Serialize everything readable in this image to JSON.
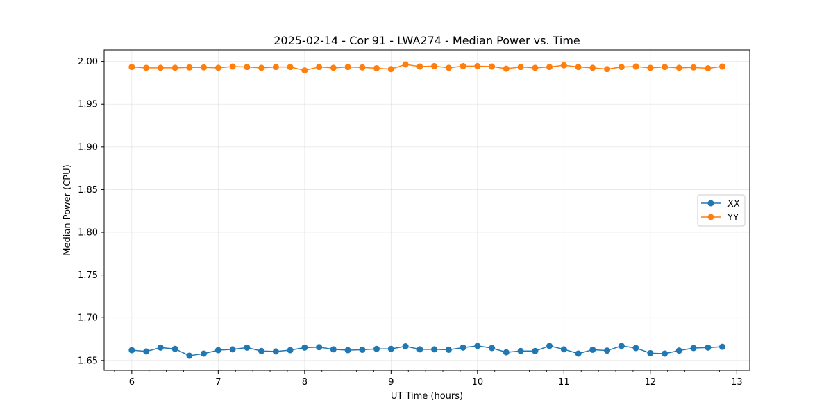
{
  "chart_data": {
    "type": "line",
    "title": "2025-02-14 - Cor 91 - LWA274 - Median Power vs. Time",
    "xlabel": "UT Time (hours)",
    "ylabel": "Median Power (CPU)",
    "xlim": [
      5.68,
      13.15
    ],
    "ylim": [
      1.6385,
      2.0135
    ],
    "xticks": [
      6,
      7,
      8,
      9,
      10,
      11,
      12,
      13
    ],
    "xtick_labels": [
      "6",
      "7",
      "8",
      "9",
      "10",
      "11",
      "12",
      "13"
    ],
    "yticks": [
      1.65,
      1.7,
      1.75,
      1.8,
      1.85,
      1.9,
      1.95,
      2.0
    ],
    "ytick_labels": [
      "1.65",
      "1.70",
      "1.75",
      "1.80",
      "1.85",
      "1.90",
      "1.95",
      "2.00"
    ],
    "x_minor_step": 0.2,
    "grid": true,
    "legend_position": "center-right",
    "x": [
      6.0,
      6.167,
      6.333,
      6.5,
      6.667,
      6.833,
      7.0,
      7.167,
      7.333,
      7.5,
      7.667,
      7.833,
      8.0,
      8.167,
      8.333,
      8.5,
      8.667,
      8.833,
      9.0,
      9.167,
      9.333,
      9.5,
      9.667,
      9.833,
      10.0,
      10.167,
      10.333,
      10.5,
      10.667,
      10.833,
      11.0,
      11.167,
      11.333,
      11.5,
      11.667,
      11.833,
      12.0,
      12.167,
      12.333,
      12.5,
      12.667,
      12.833
    ],
    "series": [
      {
        "name": "XX",
        "color": "#1f77b4",
        "values": [
          1.662,
          1.6605,
          1.665,
          1.6635,
          1.6555,
          1.658,
          1.662,
          1.663,
          1.665,
          1.661,
          1.6605,
          1.662,
          1.665,
          1.6655,
          1.663,
          1.662,
          1.6625,
          1.6635,
          1.6635,
          1.6665,
          1.663,
          1.663,
          1.6625,
          1.665,
          1.667,
          1.6645,
          1.6595,
          1.661,
          1.661,
          1.667,
          1.663,
          1.658,
          1.6625,
          1.6615,
          1.667,
          1.6645,
          1.6585,
          1.658,
          1.6615,
          1.6645,
          1.665,
          1.666
        ]
      },
      {
        "name": "YY",
        "color": "#ff7f0e",
        "values": [
          1.9935,
          1.9925,
          1.9925,
          1.9925,
          1.993,
          1.993,
          1.9925,
          1.994,
          1.9935,
          1.9925,
          1.9935,
          1.9935,
          1.9895,
          1.9935,
          1.9925,
          1.9935,
          1.993,
          1.992,
          1.991,
          1.9965,
          1.994,
          1.9945,
          1.9925,
          1.9945,
          1.9945,
          1.994,
          1.9915,
          1.9935,
          1.9925,
          1.9935,
          1.9955,
          1.9935,
          1.9925,
          1.991,
          1.9935,
          1.994,
          1.9925,
          1.9935,
          1.9925,
          1.993,
          1.992,
          1.994
        ]
      }
    ]
  }
}
